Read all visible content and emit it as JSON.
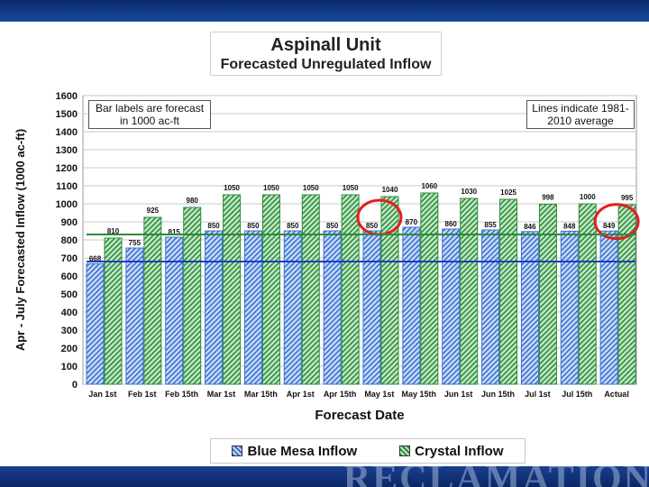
{
  "title": {
    "line1": "Aspinall Unit",
    "line2": "Forecasted Unregulated Inflow"
  },
  "notes": {
    "left": "Bar labels are forecast in 1000 ac-ft",
    "right": "Lines indicate 1981-2010 average"
  },
  "legend": {
    "blue": "Blue Mesa Inflow",
    "green": "Crystal Inflow"
  },
  "brand": "RECLAMATION",
  "colors": {
    "blue": "#3a6fd0",
    "green": "#2e8b3a",
    "highlight_circle": "#e02020",
    "plot_bg": "#ffffff"
  },
  "chart_data": {
    "type": "bar",
    "xlabel": "Forecast Date",
    "ylabel": "Apr - July Forecasted Inflow  (1000 ac-ft)",
    "ylim": [
      0,
      1600
    ],
    "ytick_step": 100,
    "grid": true,
    "categories": [
      "Jan 1st",
      "Feb 1st",
      "Feb 15th",
      "Mar 1st",
      "Mar 15th",
      "Apr 1st",
      "Apr 15th",
      "May 1st",
      "May 15th",
      "Jun 1st",
      "Jun 15th",
      "Jul 1st",
      "Jul 15th",
      "Actual"
    ],
    "series": [
      {
        "name": "Blue Mesa Inflow",
        "values": [
          668,
          755,
          815,
          850,
          850,
          850,
          850,
          850,
          870,
          860,
          855,
          846,
          848,
          849
        ],
        "average": 680
      },
      {
        "name": "Crystal Inflow",
        "values": [
          810,
          925,
          980,
          1050,
          1050,
          1050,
          1050,
          1040,
          1060,
          1030,
          1025,
          998,
          1000,
          995
        ],
        "average": 830
      }
    ],
    "highlighted": [
      "May 1st",
      "Actual"
    ]
  }
}
